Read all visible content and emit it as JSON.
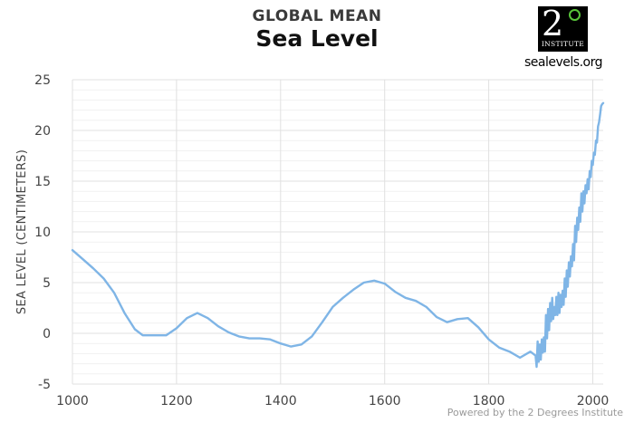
{
  "header": {
    "supertitle": "GLOBAL MEAN",
    "title": "Sea Level"
  },
  "logo": {
    "numeral": "2",
    "org": "INSTITUTE",
    "url": "sealevels.org",
    "accent_color": "#58c43a"
  },
  "footer": {
    "credit": "Powered by the 2 Degrees Institute"
  },
  "chart_data": {
    "type": "line",
    "title": "Sea Level",
    "subtitle": "GLOBAL MEAN",
    "xlabel": "",
    "ylabel": "SEA LEVEL (CENTIMETERS)",
    "xlim": [
      1000,
      2020
    ],
    "ylim": [
      -5,
      25
    ],
    "x_ticks": [
      1000,
      1200,
      1400,
      1600,
      1800,
      2000
    ],
    "y_ticks": [
      -5,
      0,
      5,
      10,
      15,
      20,
      25
    ],
    "grid": true,
    "legend": "none",
    "series": [
      {
        "color": "#7fb5e6",
        "points": [
          [
            1000,
            8.2
          ],
          [
            1020,
            7.3
          ],
          [
            1040,
            6.4
          ],
          [
            1060,
            5.4
          ],
          [
            1080,
            4.0
          ],
          [
            1100,
            2.0
          ],
          [
            1120,
            0.4
          ],
          [
            1135,
            -0.2
          ],
          [
            1160,
            -0.2
          ],
          [
            1180,
            -0.2
          ],
          [
            1200,
            0.5
          ],
          [
            1220,
            1.5
          ],
          [
            1240,
            2.0
          ],
          [
            1260,
            1.5
          ],
          [
            1280,
            0.7
          ],
          [
            1300,
            0.1
          ],
          [
            1320,
            -0.3
          ],
          [
            1340,
            -0.5
          ],
          [
            1360,
            -0.5
          ],
          [
            1380,
            -0.6
          ],
          [
            1400,
            -1.0
          ],
          [
            1420,
            -1.3
          ],
          [
            1440,
            -1.1
          ],
          [
            1460,
            -0.3
          ],
          [
            1480,
            1.1
          ],
          [
            1500,
            2.6
          ],
          [
            1520,
            3.5
          ],
          [
            1540,
            4.3
          ],
          [
            1560,
            5.0
          ],
          [
            1580,
            5.2
          ],
          [
            1600,
            4.9
          ],
          [
            1620,
            4.1
          ],
          [
            1640,
            3.5
          ],
          [
            1660,
            3.2
          ],
          [
            1680,
            2.6
          ],
          [
            1700,
            1.6
          ],
          [
            1720,
            1.1
          ],
          [
            1740,
            1.4
          ],
          [
            1760,
            1.5
          ],
          [
            1780,
            0.6
          ],
          [
            1800,
            -0.6
          ],
          [
            1820,
            -1.4
          ],
          [
            1840,
            -1.8
          ],
          [
            1860,
            -2.4
          ],
          [
            1880,
            -1.8
          ],
          [
            1890,
            -2.2
          ],
          [
            1892,
            -3.3
          ],
          [
            1894,
            -0.8
          ],
          [
            1896,
            -2.8
          ],
          [
            1898,
            -1.1
          ],
          [
            1900,
            -2.6
          ],
          [
            1902,
            -0.6
          ],
          [
            1904,
            -1.9
          ],
          [
            1906,
            -0.4
          ],
          [
            1908,
            -1.8
          ],
          [
            1910,
            1.8
          ],
          [
            1912,
            -0.5
          ],
          [
            1914,
            2.4
          ],
          [
            1916,
            0.3
          ],
          [
            1918,
            3.0
          ],
          [
            1920,
            1.2
          ],
          [
            1922,
            3.5
          ],
          [
            1924,
            1.4
          ],
          [
            1926,
            2.6
          ],
          [
            1928,
            1.8
          ],
          [
            1930,
            3.6
          ],
          [
            1932,
            1.8
          ],
          [
            1934,
            4.0
          ],
          [
            1936,
            2.0
          ],
          [
            1938,
            3.8
          ],
          [
            1940,
            2.6
          ],
          [
            1942,
            4.2
          ],
          [
            1944,
            2.8
          ],
          [
            1946,
            5.4
          ],
          [
            1948,
            3.6
          ],
          [
            1950,
            6.2
          ],
          [
            1952,
            4.6
          ],
          [
            1954,
            7.0
          ],
          [
            1956,
            5.6
          ],
          [
            1958,
            7.6
          ],
          [
            1960,
            6.6
          ],
          [
            1962,
            8.8
          ],
          [
            1964,
            7.2
          ],
          [
            1966,
            10.6
          ],
          [
            1968,
            9.0
          ],
          [
            1970,
            11.4
          ],
          [
            1972,
            10.2
          ],
          [
            1974,
            12.4
          ],
          [
            1976,
            11.0
          ],
          [
            1978,
            13.8
          ],
          [
            1980,
            12.0
          ],
          [
            1982,
            14.0
          ],
          [
            1984,
            12.8
          ],
          [
            1986,
            14.6
          ],
          [
            1988,
            13.8
          ],
          [
            1990,
            15.2
          ],
          [
            1992,
            14.2
          ],
          [
            1994,
            16.0
          ],
          [
            1996,
            15.4
          ],
          [
            1998,
            17.0
          ],
          [
            2000,
            16.6
          ],
          [
            2002,
            17.8
          ],
          [
            2004,
            17.6
          ],
          [
            2006,
            19.0
          ],
          [
            2008,
            18.8
          ],
          [
            2010,
            20.4
          ],
          [
            2012,
            20.8
          ],
          [
            2014,
            21.6
          ],
          [
            2016,
            22.4
          ],
          [
            2018,
            22.6
          ],
          [
            2020,
            22.7
          ]
        ]
      }
    ]
  }
}
